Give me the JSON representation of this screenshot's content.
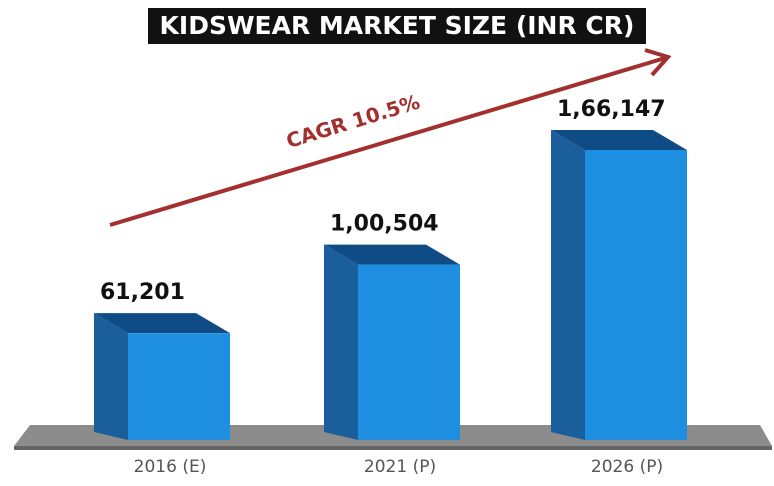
{
  "chart_data": {
    "type": "bar",
    "title": "KIDSWEAR MARKET SIZE (INR CR)",
    "categories": [
      "2016 (E)",
      "2021 (P)",
      "2026 (P)"
    ],
    "values": [
      61201,
      100504,
      166147
    ],
    "value_labels": [
      "61,201",
      "1,00,504",
      "1,66,147"
    ],
    "color": "#1e8fe0",
    "annotation": "CAGR 10.5%"
  }
}
